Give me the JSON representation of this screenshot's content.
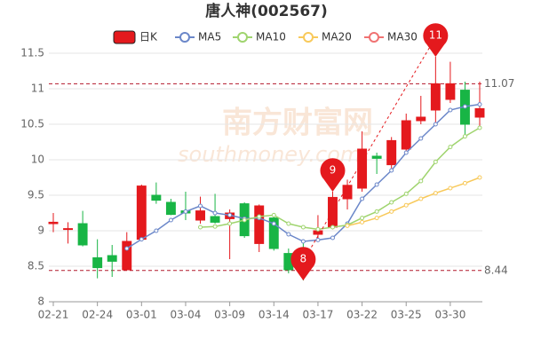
{
  "chart_data": {
    "type": "candlestick",
    "title": "唐人神(002567)",
    "watermark": [
      "南方财富网",
      "southmoney.com"
    ],
    "categories": [
      "02-21",
      null,
      null,
      "02-24",
      null,
      null,
      "03-01",
      null,
      null,
      "03-04",
      null,
      null,
      "03-09",
      null,
      null,
      "03-14",
      null,
      null,
      "03-17",
      null,
      null,
      "03-22",
      null,
      null,
      "03-25",
      null,
      null,
      "03-30",
      null,
      null
    ],
    "candles": {
      "name": "日K",
      "up_color": "#e4191d",
      "down_color": "#18b545",
      "open": [
        9.1,
        9.02,
        9.1,
        8.62,
        8.65,
        8.45,
        8.88,
        9.5,
        9.4,
        9.28,
        9.15,
        9.2,
        9.17,
        9.38,
        8.82,
        9.18,
        8.68,
        8.75,
        8.95,
        9.05,
        9.45,
        9.6,
        10.05,
        9.93,
        10.15,
        10.55,
        10.7,
        10.85,
        10.98,
        10.6
      ],
      "high": [
        9.25,
        9.12,
        9.28,
        8.88,
        8.8,
        8.98,
        9.65,
        9.68,
        9.45,
        9.55,
        9.48,
        9.52,
        9.3,
        9.4,
        9.37,
        9.25,
        8.75,
        8.85,
        9.22,
        9.55,
        9.72,
        10.4,
        10.1,
        10.32,
        10.65,
        10.9,
        11.45,
        11.38,
        11.1,
        11.1
      ],
      "low": [
        8.98,
        8.82,
        8.78,
        8.33,
        8.35,
        8.45,
        8.85,
        9.38,
        9.22,
        9.15,
        9.1,
        9.1,
        8.6,
        8.9,
        8.7,
        8.72,
        8.4,
        8.3,
        8.9,
        9.02,
        9.3,
        9.55,
        9.8,
        9.88,
        10.12,
        10.5,
        10.5,
        10.8,
        10.35,
        10.45
      ],
      "close": [
        9.12,
        9.03,
        8.8,
        8.48,
        8.57,
        8.85,
        9.63,
        9.43,
        9.23,
        9.25,
        9.28,
        9.12,
        9.25,
        8.93,
        9.35,
        8.75,
        8.45,
        8.55,
        9.0,
        9.47,
        9.64,
        10.15,
        10.02,
        10.27,
        10.55,
        10.6,
        11.07,
        11.07,
        10.5,
        10.72
      ]
    },
    "series": [
      {
        "name": "MA5",
        "color": "#6b87c9",
        "values": [
          null,
          null,
          null,
          null,
          null,
          8.75,
          8.88,
          9.0,
          9.15,
          9.27,
          9.35,
          9.25,
          9.22,
          9.17,
          9.18,
          9.1,
          8.95,
          8.85,
          8.87,
          8.9,
          9.1,
          9.45,
          9.65,
          9.85,
          10.1,
          10.3,
          10.5,
          10.7,
          10.75,
          10.78
        ]
      },
      {
        "name": "MA10",
        "color": "#9fd46e",
        "values": [
          null,
          null,
          null,
          null,
          null,
          null,
          null,
          null,
          null,
          null,
          9.05,
          9.06,
          9.1,
          9.15,
          9.2,
          9.22,
          9.1,
          9.05,
          9.02,
          9.05,
          9.08,
          9.18,
          9.27,
          9.4,
          9.52,
          9.7,
          9.97,
          10.18,
          10.33,
          10.45
        ]
      },
      {
        "name": "MA20",
        "color": "#f8c95a",
        "values": [
          null,
          null,
          null,
          null,
          null,
          null,
          null,
          null,
          null,
          null,
          null,
          null,
          null,
          null,
          null,
          null,
          null,
          null,
          null,
          null,
          9.07,
          9.12,
          9.18,
          9.27,
          9.36,
          9.45,
          9.53,
          9.6,
          9.67,
          9.75
        ]
      },
      {
        "name": "MA30",
        "color": "#f07272",
        "values": [
          null,
          null,
          null,
          null,
          null,
          null,
          null,
          null,
          null,
          null,
          null,
          null,
          null,
          null,
          null,
          null,
          null,
          null,
          null,
          null,
          null,
          null,
          null,
          null,
          null,
          null,
          null,
          null,
          null,
          null
        ]
      }
    ],
    "reference_lines": [
      11.07,
      8.44
    ],
    "pins": [
      {
        "text": "11",
        "index": 26,
        "anchor": "high"
      },
      {
        "text": "8",
        "index": 17,
        "anchor": "low"
      },
      {
        "text": "9",
        "index": 19,
        "anchor": "high"
      }
    ],
    "pin_color": "#e4191d",
    "ylim": [
      8,
      11.5
    ],
    "yticks": [
      8,
      8.5,
      9,
      9.5,
      10,
      10.5,
      11,
      11.5
    ],
    "grid": true
  }
}
